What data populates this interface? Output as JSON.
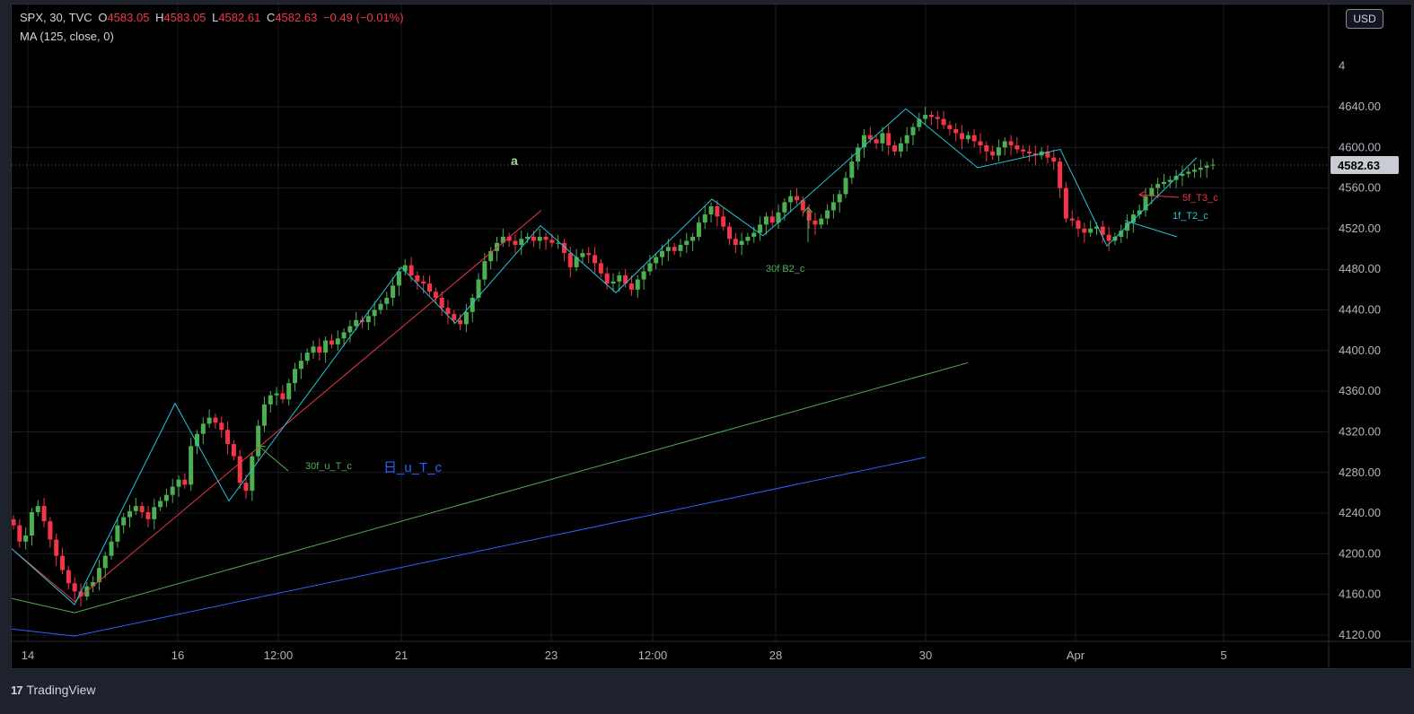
{
  "legend": {
    "symbol": "SPX, 30, TVC",
    "o_label": "O",
    "o_value": "4583.05",
    "h_label": "H",
    "h_value": "4583.05",
    "l_label": "L",
    "l_value": "4582.61",
    "c_label": "C",
    "c_value": "4582.63",
    "change": "−0.49 (−0.01%)",
    "ma": "MA (125, close, 0)"
  },
  "currency_button": "USD",
  "brand": {
    "logo": "17",
    "name": "TradingView"
  },
  "colors": {
    "up": "#26a69a",
    "down": "#f23645",
    "zigzag": "#26c6da",
    "green_line": "#4caf50",
    "red_line": "#f23645",
    "blue_line": "#2962ff"
  },
  "chart_data": {
    "type": "candlestick",
    "y_ticks": [
      4640,
      4600,
      4560,
      4520,
      4480,
      4440,
      4400,
      4360,
      4320,
      4280,
      4240,
      4200,
      4160,
      4120
    ],
    "ylim": [
      4106,
      4693
    ],
    "y_axis_top_partial": "4",
    "last_price": "4582.63",
    "x_ticks": [
      "14",
      "16",
      "12:00",
      "21",
      "23",
      "12:00",
      "28",
      "30",
      "Apr",
      "5"
    ],
    "annotations": [
      {
        "text": "a",
        "color": "#a5d6a7"
      },
      {
        "text": "30f B2_c",
        "color": "#4caf50"
      },
      {
        "text": "30f_u_T_c",
        "color": "#4caf50"
      },
      {
        "text": "日_u_T_c",
        "color": "#2962ff"
      },
      {
        "text": "5f_T3_c",
        "color": "#f23645"
      },
      {
        "text": "1f_T2_c",
        "color": "#26c6da"
      }
    ],
    "zigzag_price": [
      4205,
      4150,
      4348,
      4252,
      4482,
      4427,
      4523,
      4457,
      4549,
      4513,
      4638,
      4580,
      4598,
      4503,
      4590
    ],
    "red_line_price": [
      4205,
      4153,
      4538
    ],
    "green_line_price": [
      4156,
      4142,
      4388
    ],
    "blue_line_price": [
      4126,
      4119,
      4295
    ],
    "candles_close": [
      4228,
      4212,
      4218,
      4241,
      4247,
      4232,
      4214,
      4198,
      4184,
      4171,
      4163,
      4158,
      4168,
      4172,
      4186,
      4198,
      4212,
      4228,
      4236,
      4242,
      4247,
      4241,
      4234,
      4246,
      4252,
      4258,
      4266,
      4273,
      4268,
      4306,
      4318,
      4328,
      4334,
      4329,
      4322,
      4308,
      4296,
      4270,
      4262,
      4296,
      4326,
      4347,
      4356,
      4358,
      4352,
      4368,
      4382,
      4390,
      4398,
      4404,
      4398,
      4410,
      4406,
      4412,
      4418,
      4424,
      4430,
      4428,
      4434,
      4440,
      4446,
      4452,
      4464,
      4478,
      4484,
      4474,
      4468,
      4466,
      4458,
      4452,
      4442,
      4436,
      4430,
      4426,
      4438,
      4452,
      4470,
      4488,
      4498,
      4506,
      4512,
      4508,
      4504,
      4510,
      4512,
      4508,
      4512,
      4509,
      4506,
      4506,
      4496,
      4482,
      4492,
      4496,
      4494,
      4486,
      4476,
      4466,
      4468,
      4474,
      4466,
      4460,
      4470,
      4478,
      4486,
      4492,
      4498,
      4502,
      4498,
      4504,
      4508,
      4512,
      4526,
      4534,
      4542,
      4532,
      4522,
      4510,
      4504,
      4508,
      4512,
      4516,
      4524,
      4532,
      4526,
      4536,
      4546,
      4552,
      4548,
      4538,
      4528,
      4524,
      4530,
      4538,
      4546,
      4554,
      4570,
      4586,
      4600,
      4612,
      4608,
      4604,
      4614,
      4602,
      4596,
      4604,
      4612,
      4620,
      4628,
      4632,
      4630,
      4628,
      4622,
      4618,
      4614,
      4608,
      4612,
      4606,
      4602,
      4596,
      4592,
      4600,
      4606,
      4602,
      4598,
      4596,
      4594,
      4592,
      4596,
      4590,
      4586,
      4560,
      4530,
      4528,
      4520,
      4516,
      4520,
      4522,
      4514,
      4508,
      4512,
      4518,
      4526,
      4534,
      4538,
      4552,
      4560,
      4564,
      4566,
      4568,
      4572,
      4574,
      4576,
      4578,
      4580,
      4582,
      4583
    ]
  }
}
